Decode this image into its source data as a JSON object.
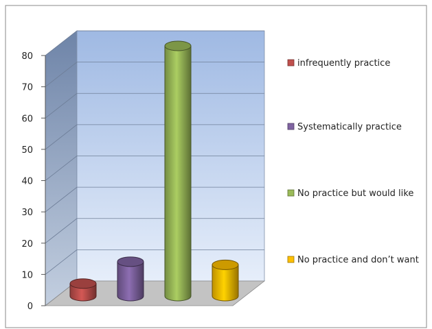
{
  "chart_data": {
    "type": "bar",
    "style": "3d-cylinder",
    "title": "",
    "xlabel": "",
    "ylabel": "",
    "ylim": [
      0,
      80
    ],
    "yticks": [
      0,
      10,
      20,
      30,
      40,
      50,
      60,
      70,
      80
    ],
    "grid": true,
    "legend_position": "right",
    "series": [
      {
        "name": "infrequently practice",
        "values": [
          4
        ],
        "color": "#c0504d"
      },
      {
        "name": "Systematically practice",
        "values": [
          11
        ],
        "color": "#8064a2"
      },
      {
        "name": "No practice but would like",
        "values": [
          80
        ],
        "color": "#9bbb59"
      },
      {
        "name": "No practice and don’t want",
        "values": [
          10
        ],
        "color": "#ffc000"
      }
    ]
  }
}
